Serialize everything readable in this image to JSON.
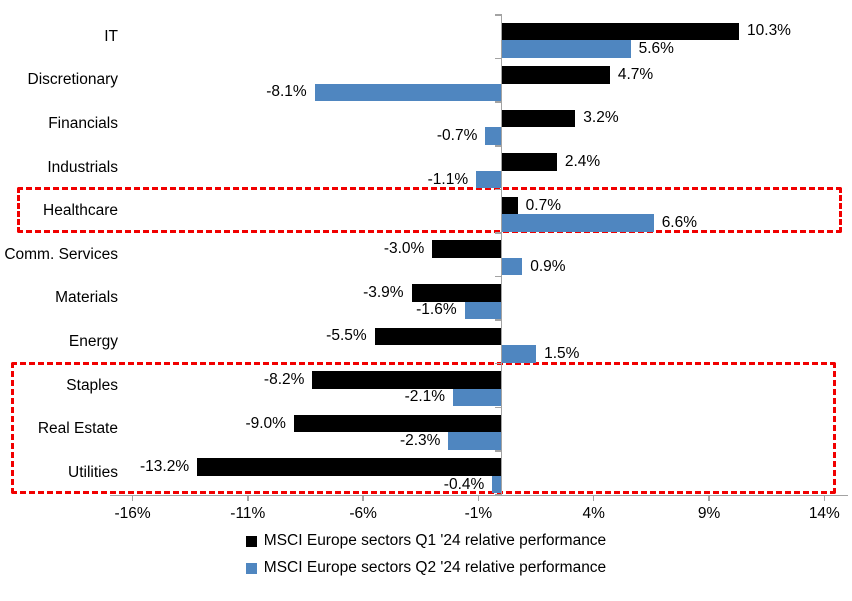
{
  "chart_data": {
    "type": "bar",
    "orientation": "horizontal",
    "title": "",
    "categories": [
      "IT",
      "Discretionary",
      "Financials",
      "Industrials",
      "Healthcare",
      "Comm. Services",
      "Materials",
      "Energy",
      "Staples",
      "Real Estate",
      "Utilities"
    ],
    "series": [
      {
        "name": "MSCI Europe sectors Q1 '24 relative performance",
        "color": "#000000",
        "values": [
          10.3,
          4.7,
          3.2,
          2.4,
          0.7,
          -3.0,
          -3.9,
          -5.5,
          -8.2,
          -9.0,
          -13.2
        ]
      },
      {
        "name": "MSCI Europe sectors Q2 '24 relative performance",
        "color": "#4F86C0",
        "values": [
          5.6,
          -8.1,
          -0.7,
          -1.1,
          6.6,
          0.9,
          -1.6,
          1.5,
          -2.1,
          -2.3,
          -0.4
        ]
      }
    ],
    "value_labels": {
      "q1": [
        "10.3%",
        "4.7%",
        "3.2%",
        "2.4%",
        "0.7%",
        "-3.0%",
        "-3.9%",
        "-5.5%",
        "-8.2%",
        "-9.0%",
        "-13.2%"
      ],
      "q2": [
        "5.6%",
        "-8.1%",
        "-0.7%",
        "-1.1%",
        "6.6%",
        "0.9%",
        "-1.6%",
        "1.5%",
        "-2.1%",
        "-2.3%",
        "-0.4%"
      ]
    },
    "x_ticks": [
      {
        "value": -16,
        "label": "-16%"
      },
      {
        "value": -11,
        "label": "-11%"
      },
      {
        "value": -6,
        "label": "-6%"
      },
      {
        "value": -1,
        "label": "-1%"
      },
      {
        "value": 4,
        "label": "4%"
      },
      {
        "value": 9,
        "label": "9%"
      },
      {
        "value": 14,
        "label": "14%"
      }
    ],
    "xlim": [
      -17,
      15.2
    ],
    "grid": false,
    "legend_position": "bottom",
    "axis_color": "#A3A3A3",
    "annotations": [
      {
        "type": "dashed-box",
        "categories": [
          "Healthcare"
        ],
        "color": "#F10000"
      },
      {
        "type": "dashed-box",
        "categories": [
          "Staples",
          "Real Estate",
          "Utilities"
        ],
        "color": "#F10000"
      }
    ]
  }
}
